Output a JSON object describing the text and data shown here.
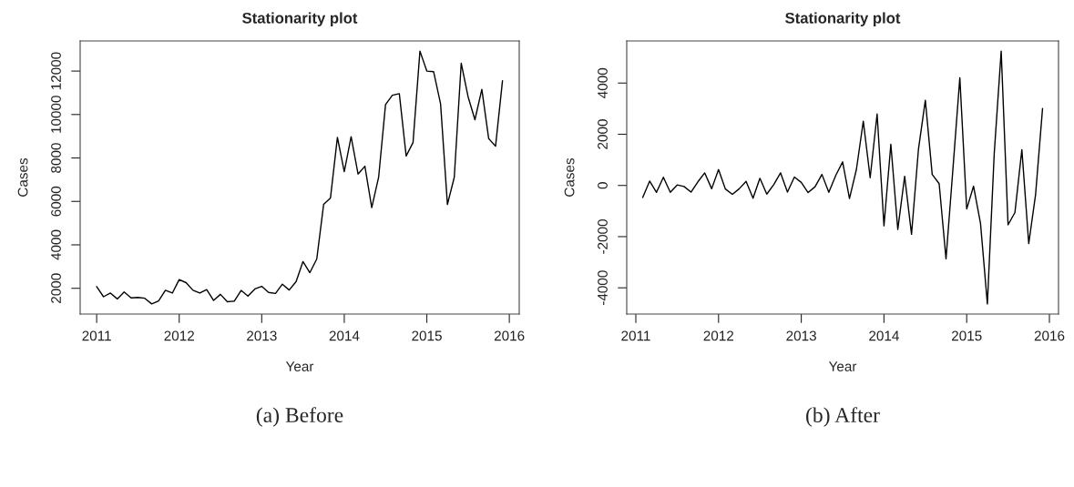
{
  "chart_data": [
    {
      "type": "line",
      "title": "Stationarity plot",
      "xlabel": "Year",
      "ylabel": "Cases",
      "annotations": [
        "(a) Before"
      ],
      "x": [
        2011.0,
        2011.083,
        2011.167,
        2011.25,
        2011.333,
        2011.417,
        2011.5,
        2011.583,
        2011.667,
        2011.75,
        2011.833,
        2011.917,
        2012.0,
        2012.083,
        2012.167,
        2012.25,
        2012.333,
        2012.417,
        2012.5,
        2012.583,
        2012.667,
        2012.75,
        2012.833,
        2012.917,
        2013.0,
        2013.083,
        2013.167,
        2013.25,
        2013.333,
        2013.417,
        2013.5,
        2013.583,
        2013.667,
        2013.75,
        2013.833,
        2013.917,
        2014.0,
        2014.083,
        2014.167,
        2014.25,
        2014.333,
        2014.417,
        2014.5,
        2014.583,
        2014.667,
        2014.75,
        2014.833,
        2014.917,
        2015.0,
        2015.083,
        2015.167,
        2015.25,
        2015.333,
        2015.417,
        2015.5,
        2015.583,
        2015.667,
        2015.75,
        2015.833,
        2015.917
      ],
      "series": [
        {
          "color": "#000000",
          "values": [
            2080,
            1610,
            1780,
            1510,
            1830,
            1560,
            1580,
            1540,
            1280,
            1420,
            1910,
            1780,
            2400,
            2260,
            1910,
            1780,
            1940,
            1440,
            1720,
            1380,
            1410,
            1900,
            1640,
            1970,
            2090,
            1810,
            1760,
            2190,
            1920,
            2310,
            3230,
            2720,
            3350,
            5860,
            6160,
            8950,
            7370,
            8980,
            7260,
            7620,
            5710,
            7130,
            10460,
            10890,
            10960,
            8090,
            8710,
            12920,
            12000,
            11970,
            10490,
            5860,
            7110,
            12360,
            10820,
            9760,
            11160,
            8890,
            8540,
            11550
          ]
        }
      ],
      "xlim": [
        2010.8,
        2016.12
      ],
      "ylim": [
        814,
        13386
      ],
      "xticks": [
        2011,
        2012,
        2013,
        2014,
        2015,
        2016
      ],
      "yticks": [
        2000,
        4000,
        6000,
        8000,
        10000,
        12000
      ],
      "grid": false
    },
    {
      "type": "line",
      "title": "Stationarity plot",
      "xlabel": "Year",
      "ylabel": "Cases",
      "annotations": [
        "(b) After"
      ],
      "x": [
        2011.083,
        2011.167,
        2011.25,
        2011.333,
        2011.417,
        2011.5,
        2011.583,
        2011.667,
        2011.75,
        2011.833,
        2011.917,
        2012.0,
        2012.083,
        2012.167,
        2012.25,
        2012.333,
        2012.417,
        2012.5,
        2012.583,
        2012.667,
        2012.75,
        2012.833,
        2012.917,
        2013.0,
        2013.083,
        2013.167,
        2013.25,
        2013.333,
        2013.417,
        2013.5,
        2013.583,
        2013.667,
        2013.75,
        2013.833,
        2013.917,
        2014.0,
        2014.083,
        2014.167,
        2014.25,
        2014.333,
        2014.417,
        2014.5,
        2014.583,
        2014.667,
        2014.75,
        2014.833,
        2014.917,
        2015.0,
        2015.083,
        2015.167,
        2015.25,
        2015.333,
        2015.417,
        2015.5,
        2015.583,
        2015.667,
        2015.75,
        2015.833,
        2015.917
      ],
      "series": [
        {
          "color": "#000000",
          "values": [
            -470,
            170,
            -270,
            320,
            -270,
            20,
            -40,
            -260,
            140,
            490,
            -130,
            620,
            -140,
            -350,
            -130,
            160,
            -500,
            280,
            -340,
            30,
            490,
            -260,
            330,
            120,
            -280,
            -50,
            430,
            -270,
            390,
            920,
            -510,
            630,
            2510,
            300,
            2790,
            -1580,
            1610,
            -1720,
            360,
            -1910,
            1420,
            3330,
            430,
            70,
            -2870,
            620,
            4210,
            -920,
            -30,
            -1480,
            -4630,
            1250,
            5250,
            -1540,
            -1060,
            1400,
            -2270,
            -350,
            3010
          ]
        }
      ],
      "xlim": [
        2010.89,
        2016.11
      ],
      "ylim": [
        -5025,
        5645
      ],
      "xticks": [
        2011,
        2012,
        2013,
        2014,
        2015,
        2016
      ],
      "yticks": [
        -4000,
        -2000,
        0,
        2000,
        4000
      ],
      "grid": false
    }
  ]
}
